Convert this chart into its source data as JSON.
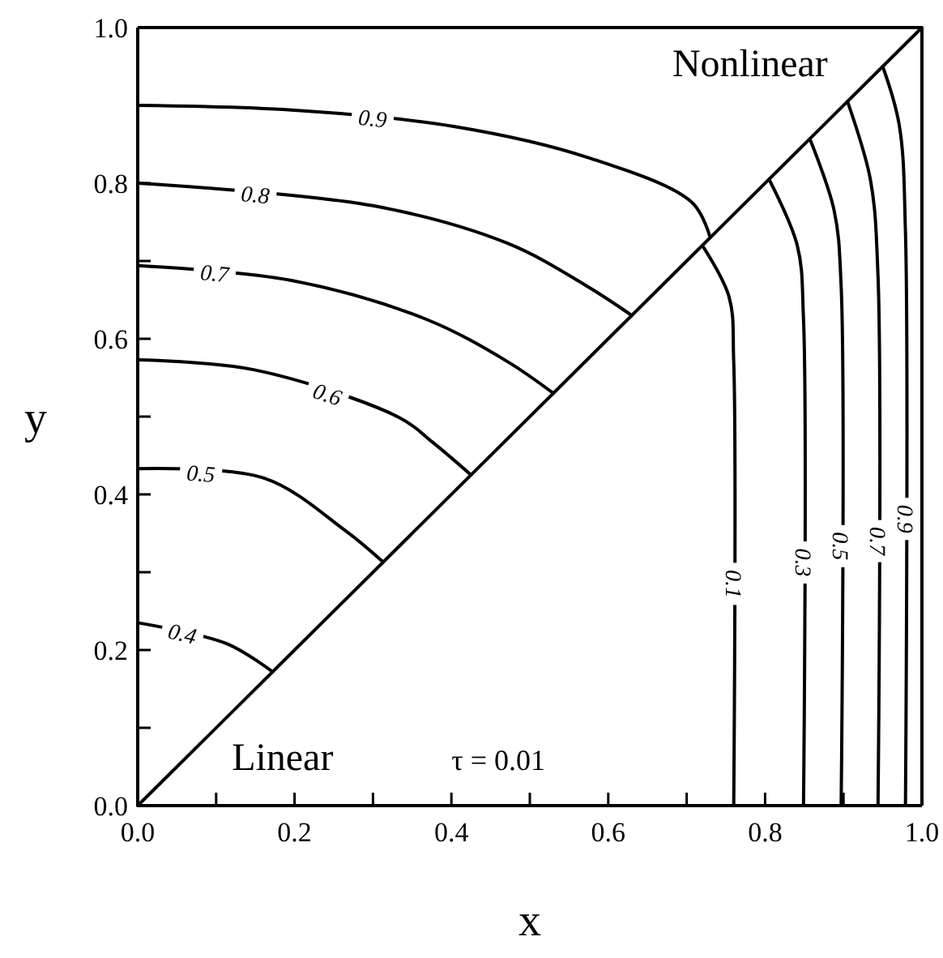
{
  "chart_data": {
    "type": "line",
    "xlabel": "x",
    "ylabel": "y",
    "xlim": [
      0,
      1
    ],
    "ylim": [
      0,
      1
    ],
    "xticks": [
      {
        "value": 0,
        "label": "0.0"
      },
      {
        "value": 0.1,
        "label": null
      },
      {
        "value": 0.2,
        "label": "0.2"
      },
      {
        "value": 0.3,
        "label": null
      },
      {
        "value": 0.4,
        "label": "0.4"
      },
      {
        "value": 0.5,
        "label": null
      },
      {
        "value": 0.6,
        "label": "0.6"
      },
      {
        "value": 0.7,
        "label": null
      },
      {
        "value": 0.8,
        "label": "0.8"
      },
      {
        "value": 0.9,
        "label": null
      },
      {
        "value": 1,
        "label": "1.0"
      }
    ],
    "yticks": [
      {
        "value": 0,
        "label": "0.0"
      },
      {
        "value": 0.1,
        "label": null
      },
      {
        "value": 0.2,
        "label": "0.2"
      },
      {
        "value": 0.3,
        "label": null
      },
      {
        "value": 0.4,
        "label": "0.4"
      },
      {
        "value": 0.5,
        "label": null
      },
      {
        "value": 0.6,
        "label": "0.6"
      },
      {
        "value": 0.7,
        "label": null
      },
      {
        "value": 0.8,
        "label": "0.8"
      },
      {
        "value": 0.9,
        "label": null
      },
      {
        "value": 1,
        "label": "1.0"
      }
    ],
    "grid": false,
    "marker": "none",
    "line_style": "solid",
    "annotations": [
      "Nonlinear",
      "Linear",
      "τ = 0.01"
    ],
    "series": [
      {
        "color": "#000000",
        "x": [
          0,
          1
        ],
        "values": [
          0,
          1
        ]
      },
      {
        "name": "0.9",
        "color": "#000000",
        "x": [
          0,
          0.196,
          0.403,
          0.574,
          0.707,
          0.73
        ],
        "values": [
          0.9,
          0.894,
          0.873,
          0.833,
          0.775,
          0.73
        ]
      },
      {
        "name": "0.8",
        "color": "#000000",
        "x": [
          0,
          0.3,
          0.471,
          0.574,
          0.63
        ],
        "values": [
          0.8,
          0.771,
          0.723,
          0.667,
          0.63
        ]
      },
      {
        "name": "0.7",
        "color": "#000000",
        "x": [
          0,
          0.196,
          0.368,
          0.471,
          0.53
        ],
        "values": [
          0.694,
          0.675,
          0.625,
          0.571,
          0.53
        ]
      },
      {
        "name": "0.6",
        "color": "#000000",
        "x": [
          0,
          0.149,
          0.335,
          0.376,
          0.425
        ],
        "values": [
          0.573,
          0.56,
          0.498,
          0.467,
          0.425
        ]
      },
      {
        "name": "0.5",
        "color": "#000000",
        "x": [
          0,
          0.161,
          0.264,
          0.313
        ],
        "values": [
          0.433,
          0.421,
          0.354,
          0.313
        ]
      },
      {
        "name": "0.4",
        "color": "#000000",
        "x": [
          0,
          0.114,
          0.172
        ],
        "values": [
          0.235,
          0.208,
          0.172
        ]
      },
      {
        "name": "0.1",
        "color": "#000000",
        "x": [
          0.72,
          0.754,
          0.76,
          0.76
        ],
        "values": [
          0.72,
          0.654,
          0.57,
          0
        ]
      },
      {
        "name": "0.3",
        "color": "#000000",
        "x": [
          0.805,
          0.841,
          0.849,
          0.849
        ],
        "values": [
          0.805,
          0.72,
          0.625,
          0
        ]
      },
      {
        "name": "0.5",
        "color": "#000000",
        "x": [
          0.857,
          0.888,
          0.897,
          0.897
        ],
        "values": [
          0.857,
          0.765,
          0.667,
          0
        ]
      },
      {
        "name": "0.7",
        "color": "#000000",
        "x": [
          0.905,
          0.934,
          0.944,
          0.944
        ],
        "values": [
          0.905,
          0.806,
          0.68,
          0
        ]
      },
      {
        "name": "0.9",
        "color": "#000000",
        "x": [
          0.95,
          0.971,
          0.979,
          0.979
        ],
        "values": [
          0.95,
          0.875,
          0.737,
          0
        ]
      }
    ]
  }
}
